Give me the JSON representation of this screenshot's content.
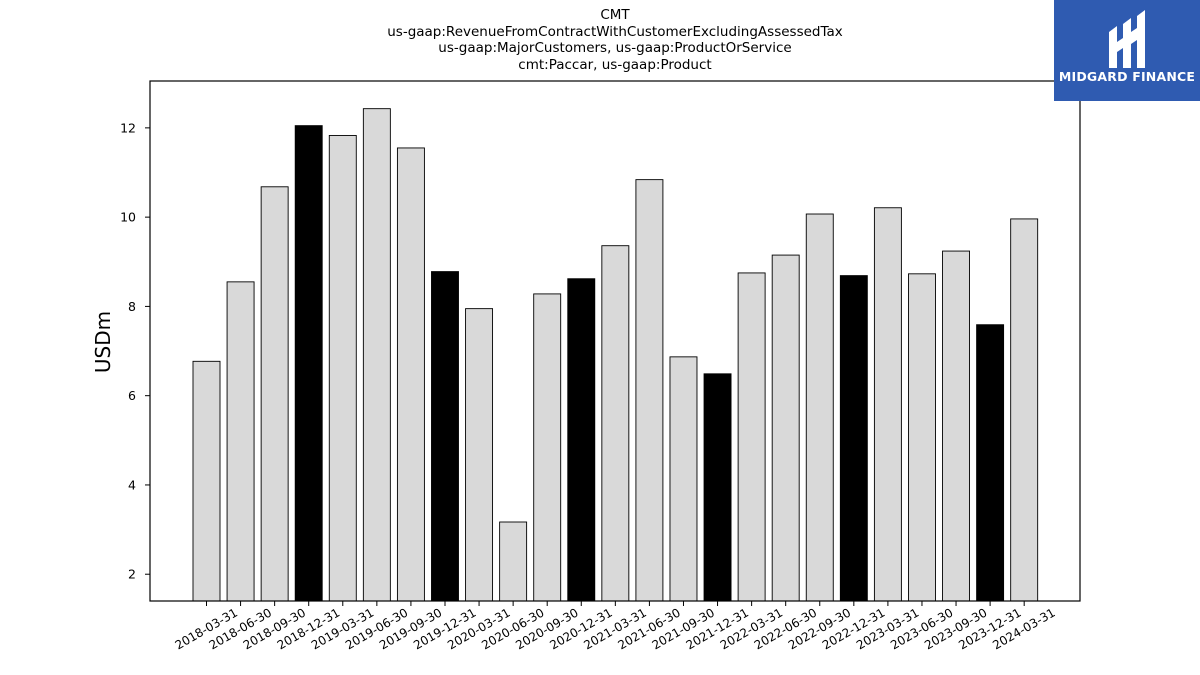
{
  "chart_data": {
    "type": "bar",
    "title_lines": [
      "CMT",
      "us-gaap:RevenueFromContractWithCustomerExcludingAssessedTax",
      "us-gaap:MajorCustomers, us-gaap:ProductOrService",
      "cmt:Paccar, us-gaap:Product"
    ],
    "xlabel": "",
    "ylabel": "USDm",
    "ylim": [
      1.4,
      13.05
    ],
    "yticks": [
      2,
      4,
      6,
      8,
      10,
      12
    ],
    "categories": [
      "2018-03-31",
      "2018-06-30",
      "2018-09-30",
      "2018-12-31",
      "2019-03-31",
      "2019-06-30",
      "2019-09-30",
      "2019-12-31",
      "2020-03-31",
      "2020-06-30",
      "2020-09-30",
      "2020-12-31",
      "2021-03-31",
      "2021-06-30",
      "2021-09-30",
      "2021-12-31",
      "2022-03-31",
      "2022-06-30",
      "2022-09-30",
      "2022-12-31",
      "2023-03-31",
      "2023-06-30",
      "2023-09-30",
      "2023-12-31",
      "2024-03-31"
    ],
    "values": [
      6.77,
      8.55,
      10.68,
      12.05,
      11.83,
      12.43,
      11.55,
      8.78,
      7.95,
      3.17,
      8.28,
      8.62,
      9.36,
      10.84,
      6.87,
      6.49,
      8.75,
      9.15,
      10.07,
      8.69,
      10.21,
      8.73,
      9.24,
      7.59,
      9.96
    ],
    "highlight": [
      false,
      false,
      false,
      true,
      false,
      false,
      false,
      true,
      false,
      false,
      false,
      true,
      false,
      false,
      false,
      true,
      false,
      false,
      false,
      true,
      false,
      false,
      false,
      true,
      false
    ],
    "colors": {
      "bar": "#d9d9d9",
      "highlight": "#000000",
      "edge": "#000000"
    },
    "grid": false,
    "legend": "none"
  },
  "logo": {
    "text": "MIDGARD FINANCE",
    "color": "#2f5bb1"
  }
}
